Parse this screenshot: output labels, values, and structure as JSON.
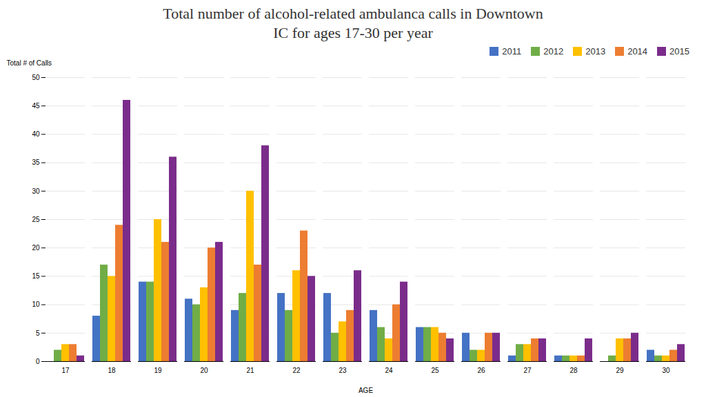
{
  "chart_data": {
    "type": "bar",
    "title": "Total number of alcohol-related ambulanca calls in Downtown\nIC for ages 17-30 per year",
    "x_label": "AGE",
    "y_label": "Total # of Calls",
    "categories": [
      "17",
      "18",
      "19",
      "20",
      "21",
      "22",
      "23",
      "24",
      "25",
      "26",
      "27",
      "28",
      "29",
      "30"
    ],
    "series": [
      {
        "name": "2011",
        "color": "#4472C4",
        "values": [
          0,
          8,
          14,
          11,
          9,
          12,
          12,
          9,
          6,
          5,
          1,
          1,
          0,
          2
        ]
      },
      {
        "name": "2012",
        "color": "#70AD47",
        "values": [
          2,
          17,
          14,
          10,
          12,
          9,
          5,
          6,
          6,
          2,
          3,
          1,
          1,
          1
        ]
      },
      {
        "name": "2013",
        "color": "#FFC000",
        "values": [
          3,
          15,
          25,
          13,
          30,
          16,
          7,
          4,
          6,
          2,
          3,
          1,
          4,
          1
        ]
      },
      {
        "name": "2014",
        "color": "#ED7D31",
        "values": [
          3,
          24,
          21,
          20,
          17,
          23,
          9,
          10,
          5,
          5,
          4,
          1,
          4,
          2
        ]
      },
      {
        "name": "2015",
        "color": "#7B2C8B",
        "values": [
          1,
          46,
          36,
          21,
          38,
          15,
          16,
          14,
          4,
          5,
          4,
          4,
          5,
          3
        ]
      }
    ],
    "ylim": [
      0,
      50
    ],
    "yticks": [
      0,
      5,
      10,
      15,
      20,
      25,
      30,
      35,
      40,
      45,
      50
    ],
    "grid": true,
    "legend": "upper right"
  }
}
